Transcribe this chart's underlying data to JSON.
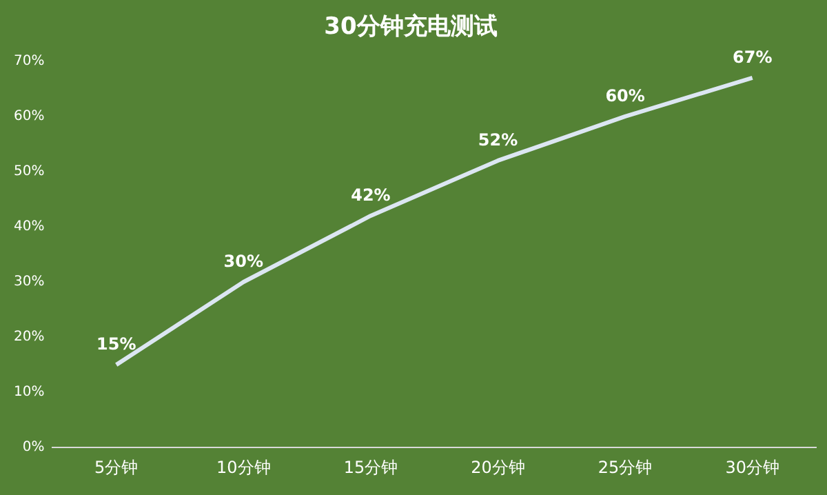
{
  "chart_data": {
    "type": "line",
    "title": "30分钟充电测试",
    "categories": [
      "5分钟",
      "10分钟",
      "15分钟",
      "20分钟",
      "25分钟",
      "30分钟"
    ],
    "series": [
      {
        "color": "#dce6f2",
        "values": [
          15,
          30,
          42,
          52,
          60,
          67
        ],
        "value_labels": [
          "15%",
          "30%",
          "42%",
          "52%",
          "60%",
          "67%"
        ]
      }
    ],
    "ylim": [
      0,
      70
    ],
    "yticks": [
      {
        "value": 0,
        "label": "0%"
      },
      {
        "value": 10,
        "label": "10%"
      },
      {
        "value": 20,
        "label": "20%"
      },
      {
        "value": 30,
        "label": "30%"
      },
      {
        "value": 40,
        "label": "40%"
      },
      {
        "value": 50,
        "label": "50%"
      },
      {
        "value": 60,
        "label": "60%"
      },
      {
        "value": 70,
        "label": "70%"
      }
    ],
    "grid": false,
    "legend": false,
    "marker": "none",
    "line_style": "solid"
  }
}
